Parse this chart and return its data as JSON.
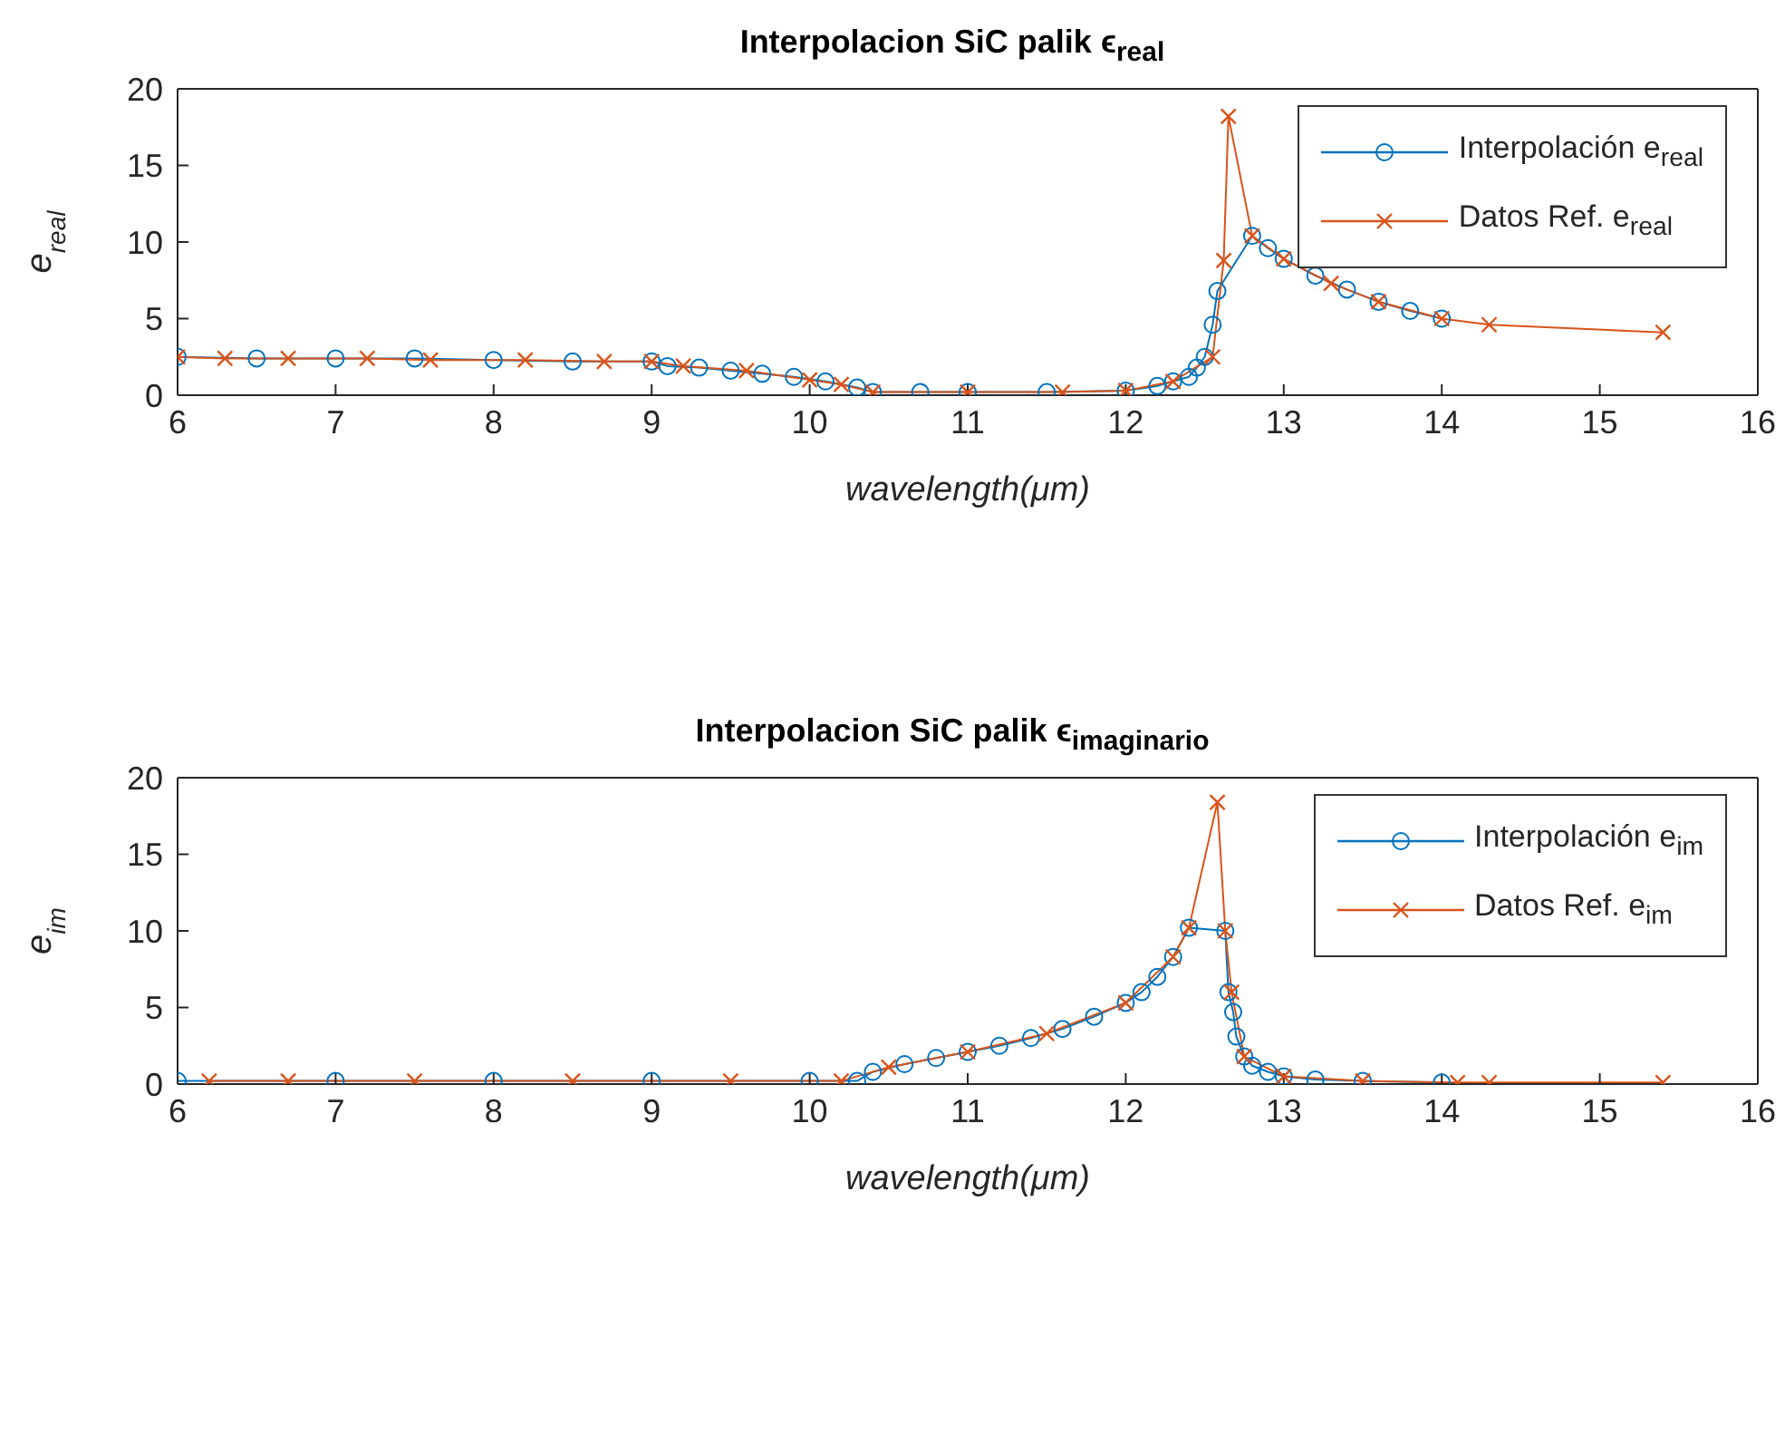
{
  "chart_data": [
    {
      "type": "line",
      "title": "Interpolacion SiC palik ϵ$_{real}$",
      "xlabel": "wavelength(μm)",
      "ylabel": "e$_{real}$",
      "xlim": [
        6,
        16
      ],
      "xticks": [
        6,
        7,
        8,
        9,
        10,
        11,
        12,
        13,
        14,
        15,
        16
      ],
      "ylim": [
        0,
        20
      ],
      "yticks": [
        0,
        5,
        10,
        15,
        20
      ],
      "legend": "top right",
      "line_style": "solid",
      "series": [
        {
          "name": "Interpolación e$_{real}$",
          "color": "#0072bd",
          "marker": "circle",
          "x": [
            6,
            6.5,
            7,
            7.5,
            8,
            8.5,
            9,
            9.1,
            9.3,
            9.5,
            9.7,
            9.9,
            10.1,
            10.3,
            10.4,
            10.7,
            11,
            11.5,
            12,
            12.2,
            12.3,
            12.4,
            12.45,
            12.5,
            12.55,
            12.58,
            12.8,
            12.9,
            13,
            13.2,
            13.4,
            13.6,
            13.8,
            14
          ],
          "values": [
            2.5,
            2.4,
            2.4,
            2.4,
            2.3,
            2.2,
            2.2,
            1.9,
            1.8,
            1.6,
            1.4,
            1.2,
            0.9,
            0.5,
            0.2,
            0.2,
            0.2,
            0.2,
            0.3,
            0.6,
            0.9,
            1.2,
            1.8,
            2.5,
            4.6,
            6.8,
            10.4,
            9.6,
            8.9,
            7.8,
            6.9,
            6.1,
            5.5,
            5.0
          ]
        },
        {
          "name": "Datos Ref.  e$_{real}$",
          "color": "#d95319",
          "marker": "cross",
          "x": [
            6,
            6.3,
            6.7,
            7.2,
            7.6,
            8.2,
            8.7,
            9,
            9.2,
            9.6,
            10,
            10.2,
            10.4,
            11,
            11.6,
            12,
            12.3,
            12.55,
            12.62,
            12.65,
            12.8,
            13,
            13.3,
            13.6,
            14,
            14.3,
            15.4
          ],
          "values": [
            2.5,
            2.4,
            2.4,
            2.4,
            2.3,
            2.3,
            2.2,
            2.2,
            1.9,
            1.6,
            1.0,
            0.7,
            0.2,
            0.2,
            0.2,
            0.3,
            0.9,
            2.5,
            8.8,
            18.2,
            10.4,
            8.9,
            7.3,
            6.1,
            5.0,
            4.6,
            4.1
          ]
        }
      ]
    },
    {
      "type": "line",
      "title": "Interpolacion SiC palik ϵ$_{imaginario}$",
      "xlabel": "wavelength(μm)",
      "ylabel": "e$_{im}$",
      "xlim": [
        6,
        16
      ],
      "xticks": [
        6,
        7,
        8,
        9,
        10,
        11,
        12,
        13,
        14,
        15,
        16
      ],
      "ylim": [
        0,
        20
      ],
      "yticks": [
        0,
        5,
        10,
        15,
        20
      ],
      "legend": "top right",
      "line_style": "solid",
      "series": [
        {
          "name": "Interpolación e$_{im}$",
          "color": "#0072bd",
          "marker": "circle",
          "x": [
            6,
            7,
            8,
            9,
            10,
            10.3,
            10.4,
            10.6,
            10.8,
            11,
            11.2,
            11.4,
            11.6,
            11.8,
            12,
            12.1,
            12.2,
            12.3,
            12.4,
            12.63,
            12.65,
            12.68,
            12.7,
            12.75,
            12.8,
            12.9,
            13,
            13.2,
            13.5,
            14
          ],
          "values": [
            0.2,
            0.2,
            0.2,
            0.2,
            0.2,
            0.2,
            0.8,
            1.3,
            1.7,
            2.1,
            2.5,
            3.0,
            3.6,
            4.4,
            5.3,
            6.0,
            7.0,
            8.3,
            10.2,
            10.0,
            6.0,
            4.7,
            3.1,
            1.8,
            1.2,
            0.8,
            0.5,
            0.3,
            0.2,
            0.1
          ]
        },
        {
          "name": "Datos Ref. e$_{im}$",
          "color": "#d95319",
          "marker": "cross",
          "x": [
            6.2,
            6.7,
            7.5,
            8.5,
            9.5,
            10.2,
            10.5,
            11,
            11.5,
            12,
            12.3,
            12.4,
            12.58,
            12.63,
            12.67,
            12.75,
            13,
            13.5,
            14.1,
            14.3,
            15.4
          ],
          "values": [
            0.2,
            0.2,
            0.2,
            0.2,
            0.2,
            0.2,
            1.1,
            2.1,
            3.3,
            5.3,
            8.3,
            10.2,
            18.4,
            10.0,
            6.0,
            1.8,
            0.5,
            0.2,
            0.1,
            0.1,
            0.1
          ]
        }
      ]
    }
  ]
}
